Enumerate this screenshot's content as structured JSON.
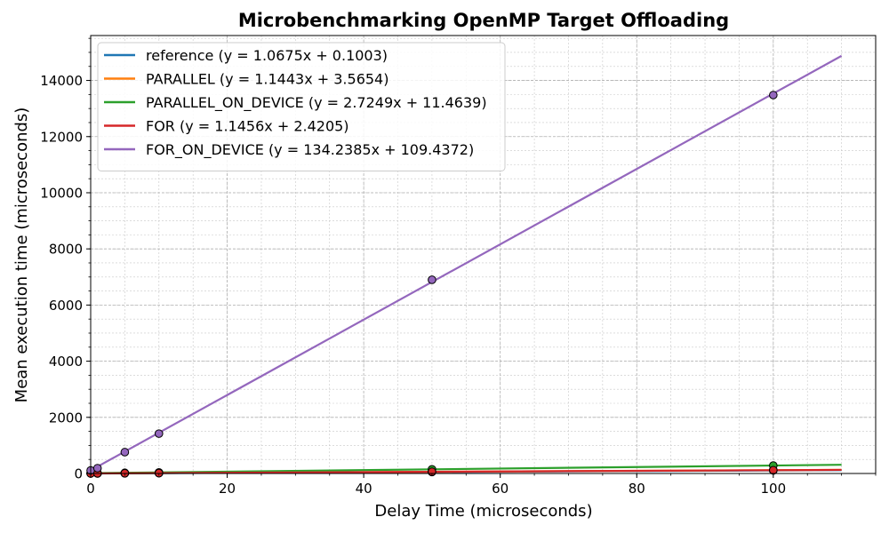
{
  "chart_data": {
    "type": "line",
    "title": "Microbenchmarking OpenMP Target Offloading",
    "xlabel": "Delay Time (microseconds)",
    "ylabel": "Mean execution time (microseconds)",
    "xlim": [
      0,
      115
    ],
    "ylim": [
      0,
      15600
    ],
    "fit_x_range": [
      0,
      110
    ],
    "x_ticks": [
      0,
      20,
      40,
      60,
      80,
      100
    ],
    "y_ticks": [
      0,
      2000,
      4000,
      6000,
      8000,
      10000,
      12000,
      14000
    ],
    "x_minor_step": 5,
    "y_minor_step": 500,
    "grid": true,
    "legend_position": "upper-left",
    "marker_edge_color": "#000000",
    "series": [
      {
        "name": "reference (y = 1.0675x + 0.1003)",
        "color": "#1f77b4",
        "slope": 1.0675,
        "intercept": 0.1003,
        "points": [
          [
            0,
            0
          ],
          [
            1,
            1
          ],
          [
            5,
            5
          ],
          [
            10,
            11
          ],
          [
            50,
            53
          ],
          [
            100,
            107
          ]
        ]
      },
      {
        "name": "PARALLEL (y = 1.1443x + 3.5654)",
        "color": "#ff7f0e",
        "slope": 1.1443,
        "intercept": 3.5654,
        "points": [
          [
            0,
            4
          ],
          [
            1,
            5
          ],
          [
            5,
            9
          ],
          [
            10,
            15
          ],
          [
            50,
            61
          ],
          [
            100,
            118
          ]
        ]
      },
      {
        "name": "PARALLEL_ON_DEVICE (y = 2.7249x + 11.4639)",
        "color": "#2ca02c",
        "slope": 2.7249,
        "intercept": 11.4639,
        "points": [
          [
            0,
            12
          ],
          [
            1,
            14
          ],
          [
            5,
            25
          ],
          [
            10,
            38
          ],
          [
            50,
            148
          ],
          [
            100,
            284
          ]
        ]
      },
      {
        "name": "FOR (y = 1.1456x + 2.4205)",
        "color": "#d62728",
        "slope": 1.1456,
        "intercept": 2.4205,
        "points": [
          [
            0,
            3
          ],
          [
            1,
            4
          ],
          [
            5,
            8
          ],
          [
            10,
            14
          ],
          [
            50,
            60
          ],
          [
            100,
            117
          ]
        ]
      },
      {
        "name": "FOR_ON_DEVICE (y = 134.2385x + 109.4372)",
        "color": "#9467bd",
        "slope": 134.2385,
        "intercept": 109.4372,
        "points": [
          [
            0,
            110
          ],
          [
            1,
            190
          ],
          [
            5,
            760
          ],
          [
            10,
            1420
          ],
          [
            50,
            6900
          ],
          [
            100,
            13480
          ]
        ]
      }
    ]
  }
}
